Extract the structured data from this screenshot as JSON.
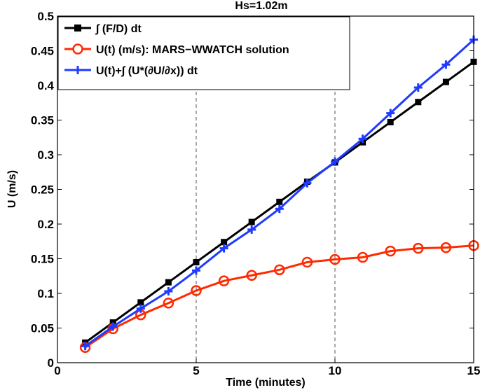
{
  "chart_data": {
    "type": "line",
    "title": "Hs=1.02m",
    "xlabel": "Time (minutes)",
    "ylabel": "U (m/s)",
    "xlim": [
      0,
      15
    ],
    "ylim": [
      0,
      0.5
    ],
    "xticks": [
      0,
      5,
      10,
      15
    ],
    "xtick_labels": [
      "0",
      "5",
      "10",
      "15"
    ],
    "yticks": [
      0,
      0.05,
      0.1,
      0.15,
      0.2,
      0.25,
      0.3,
      0.35,
      0.4,
      0.45,
      0.5
    ],
    "ytick_labels": [
      "0",
      "0.05",
      "0.1",
      "0.15",
      "0.2",
      "0.25",
      "0.3",
      "0.35",
      "0.4",
      "0.45",
      "0.5"
    ],
    "grid": "dashed at x ticks",
    "legend_position": "top-left",
    "x": [
      1,
      2,
      3,
      4,
      5,
      6,
      7,
      8,
      9,
      10,
      11,
      12,
      13,
      14,
      15
    ],
    "series": [
      {
        "name": "∫ (F/D) dt",
        "color": "#000000",
        "marker": "square",
        "values": [
          0.029,
          0.058,
          0.087,
          0.116,
          0.145,
          0.174,
          0.203,
          0.232,
          0.261,
          0.289,
          0.318,
          0.347,
          0.376,
          0.405,
          0.434
        ]
      },
      {
        "name": "U(t) (m/s): MARS−WWATCH solution",
        "color": "#ff2a00",
        "marker": "circle",
        "values": [
          0.022,
          0.049,
          0.069,
          0.086,
          0.104,
          0.118,
          0.126,
          0.134,
          0.145,
          0.149,
          0.152,
          0.161,
          0.165,
          0.166,
          0.169
        ]
      },
      {
        "name": "U(t)+∫ (U*(∂U/∂x)) dt",
        "color": "#1f3bff",
        "marker": "plus",
        "values": [
          0.024,
          0.052,
          0.078,
          0.103,
          0.133,
          0.165,
          0.192,
          0.222,
          0.259,
          0.29,
          0.323,
          0.36,
          0.397,
          0.43,
          0.466
        ]
      }
    ]
  }
}
